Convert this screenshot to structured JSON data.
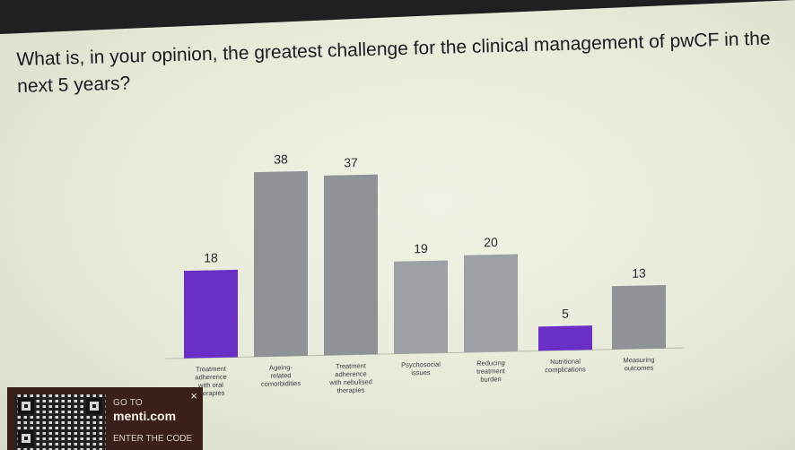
{
  "slide": {
    "question": "What is, in your opinion, the greatest challenge for the clinical management of pwCF in the next 5 years?"
  },
  "chart_data": {
    "type": "bar",
    "categories": [
      "Treatment adherence with oral therapies",
      "Ageing-related comorbidities",
      "Treatment adherence with nebulised therapies",
      "Psychosocial issues",
      "Reducing treatment burden",
      "Nutritional complications",
      "Measuring outcomes"
    ],
    "category_lines": [
      [
        "Treatment",
        "adherence",
        "with oral",
        "therapies"
      ],
      [
        "Ageing-",
        "related",
        "comorbidities"
      ],
      [
        "Treatment",
        "adherence",
        "with nebulised",
        "therapies"
      ],
      [
        "Psychosocial",
        "issues"
      ],
      [
        "Reducing",
        "treatment",
        "burden"
      ],
      [
        "Nutritional",
        "complications"
      ],
      [
        "Measuring",
        "outcomes"
      ]
    ],
    "values": [
      18,
      38,
      37,
      19,
      20,
      5,
      13
    ],
    "data_labels": [
      "18",
      "38",
      "37",
      "19",
      "20",
      "5",
      "13"
    ],
    "colors": [
      "#6a2fc4",
      "#8f9296",
      "#8f9296",
      "#9da1a5",
      "#9da1a5",
      "#6a2fc4",
      "#8f9296"
    ],
    "title": "",
    "xlabel": "",
    "ylabel": "",
    "ylim": [
      0,
      38
    ],
    "grid": false,
    "legend": "none"
  },
  "menti": {
    "goto": "GO TO",
    "url": "menti.com",
    "enter_code": "ENTER THE CODE",
    "close": "×"
  }
}
